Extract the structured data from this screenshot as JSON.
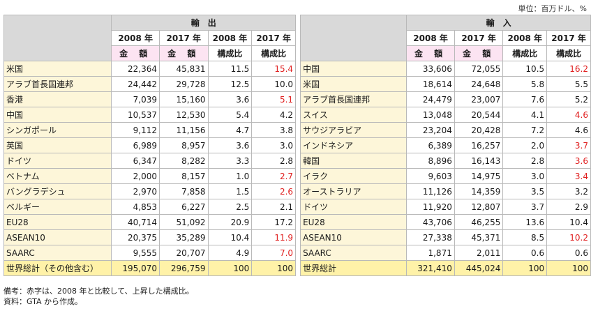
{
  "unit": "単位：百万ドル、%",
  "headers": {
    "export_title": "輸　出",
    "import_title": "輸　入",
    "year_2008": "2008 年",
    "year_2017": "2017 年",
    "amount": "金 額",
    "ratio": "構成比"
  },
  "exports": [
    {
      "name": "米国",
      "v2008": "22,364",
      "v2017": "45,831",
      "r2008": "11.5",
      "r2017": "15.4",
      "up": true
    },
    {
      "name": "アラブ首長国連邦",
      "v2008": "24,442",
      "v2017": "29,728",
      "r2008": "12.5",
      "r2017": "10.0",
      "up": false
    },
    {
      "name": "香港",
      "v2008": "7,039",
      "v2017": "15,160",
      "r2008": "3.6",
      "r2017": "5.1",
      "up": true
    },
    {
      "name": "中国",
      "v2008": "10,537",
      "v2017": "12,530",
      "r2008": "5.4",
      "r2017": "4.2",
      "up": false
    },
    {
      "name": "シンガポール",
      "v2008": "9,112",
      "v2017": "11,156",
      "r2008": "4.7",
      "r2017": "3.8",
      "up": false
    },
    {
      "name": "英国",
      "v2008": "6,989",
      "v2017": "8,957",
      "r2008": "3.6",
      "r2017": "3.0",
      "up": false
    },
    {
      "name": "ドイツ",
      "v2008": "6,347",
      "v2017": "8,282",
      "r2008": "3.3",
      "r2017": "2.8",
      "up": false
    },
    {
      "name": "ベトナム",
      "v2008": "2,000",
      "v2017": "8,157",
      "r2008": "1.0",
      "r2017": "2.7",
      "up": true
    },
    {
      "name": "バングラデシュ",
      "v2008": "2,970",
      "v2017": "7,858",
      "r2008": "1.5",
      "r2017": "2.6",
      "up": true
    },
    {
      "name": "ベルギー",
      "v2008": "4,853",
      "v2017": "6,227",
      "r2008": "2.5",
      "r2017": "2.1",
      "up": false
    },
    {
      "name": "EU28",
      "v2008": "40,714",
      "v2017": "51,092",
      "r2008": "20.9",
      "r2017": "17.2",
      "up": false
    },
    {
      "name": "ASEAN10",
      "v2008": "20,375",
      "v2017": "35,289",
      "r2008": "10.4",
      "r2017": "11.9",
      "up": true
    },
    {
      "name": "SAARC",
      "v2008": "9,555",
      "v2017": "20,707",
      "r2008": "4.9",
      "r2017": "7.0",
      "up": true
    },
    {
      "name": "世界総計（その他含む）",
      "v2008": "195,070",
      "v2017": "296,759",
      "r2008": "100",
      "r2017": "100",
      "up": false,
      "total": true
    }
  ],
  "imports": [
    {
      "name": "中国",
      "v2008": "33,606",
      "v2017": "72,055",
      "r2008": "10.5",
      "r2017": "16.2",
      "up": true
    },
    {
      "name": "米国",
      "v2008": "18,614",
      "v2017": "24,648",
      "r2008": "5.8",
      "r2017": "5.5",
      "up": false
    },
    {
      "name": "アラブ首長国連邦",
      "v2008": "24,479",
      "v2017": "23,007",
      "r2008": "7.6",
      "r2017": "5.2",
      "up": false
    },
    {
      "name": "スイス",
      "v2008": "13,048",
      "v2017": "20,544",
      "r2008": "4.1",
      "r2017": "4.6",
      "up": true
    },
    {
      "name": "サウジアラビア",
      "v2008": "23,204",
      "v2017": "20,428",
      "r2008": "7.2",
      "r2017": "4.6",
      "up": false
    },
    {
      "name": "インドネシア",
      "v2008": "6,389",
      "v2017": "16,257",
      "r2008": "2.0",
      "r2017": "3.7",
      "up": true
    },
    {
      "name": "韓国",
      "v2008": "8,896",
      "v2017": "16,143",
      "r2008": "2.8",
      "r2017": "3.6",
      "up": true
    },
    {
      "name": "イラク",
      "v2008": "9,603",
      "v2017": "14,975",
      "r2008": "3.0",
      "r2017": "3.4",
      "up": true
    },
    {
      "name": "オーストラリア",
      "v2008": "11,126",
      "v2017": "14,359",
      "r2008": "3.5",
      "r2017": "3.2",
      "up": false
    },
    {
      "name": "ドイツ",
      "v2008": "11,920",
      "v2017": "12,807",
      "r2008": "3.7",
      "r2017": "2.9",
      "up": false
    },
    {
      "name": "EU28",
      "v2008": "43,706",
      "v2017": "46,255",
      "r2008": "13.6",
      "r2017": "10.4",
      "up": false
    },
    {
      "name": "ASEAN10",
      "v2008": "27,338",
      "v2017": "45,371",
      "r2008": "8.5",
      "r2017": "10.2",
      "up": true
    },
    {
      "name": "SAARC",
      "v2008": "1,871",
      "v2017": "2,011",
      "r2008": "0.6",
      "r2017": "0.6",
      "up": false
    },
    {
      "name": "世界総計",
      "v2008": "321,410",
      "v2017": "445,024",
      "r2008": "100",
      "r2017": "100",
      "up": false,
      "total": true
    }
  ],
  "notes": {
    "remark": "備考：赤字は、2008 年と比較して、上昇した構成比。",
    "source": "資料：GTA から作成。"
  }
}
